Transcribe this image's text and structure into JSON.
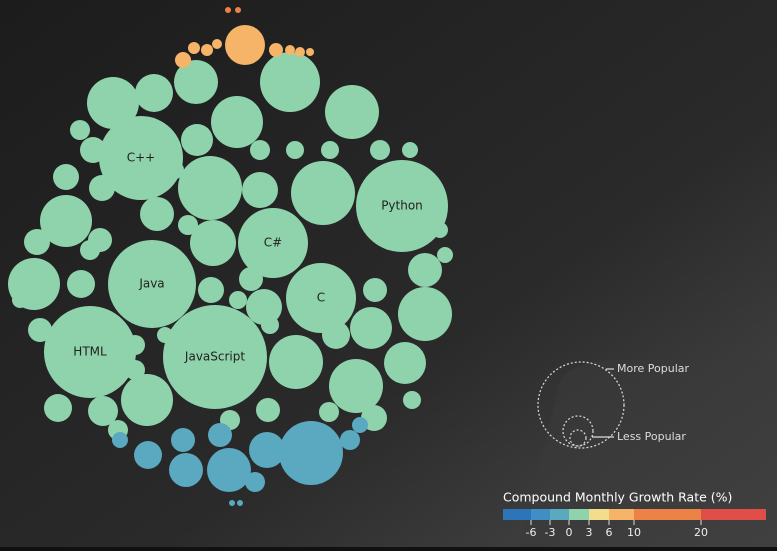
{
  "chart_data": {
    "type": "bubble",
    "names": [
      "C++",
      "Python",
      "C#",
      "Java",
      "C",
      "HTML",
      "JavaScript",
      null,
      null,
      null,
      null,
      null,
      null,
      null,
      null,
      null,
      null,
      null,
      null,
      null,
      null,
      null,
      null,
      null,
      null,
      null,
      null,
      null,
      null,
      null,
      null,
      null,
      null,
      null,
      null,
      null,
      null,
      null,
      null,
      null,
      null,
      null,
      null,
      null,
      null,
      null,
      null,
      null,
      null,
      null,
      null,
      null,
      null,
      null,
      null,
      null,
      null,
      null,
      null,
      null,
      null,
      null,
      null,
      null,
      null,
      null,
      null,
      null,
      null,
      null,
      null,
      null,
      null,
      null,
      null,
      null,
      null,
      null,
      null,
      null,
      null,
      null,
      null,
      null,
      null,
      null,
      null,
      null,
      null,
      null,
      null,
      null
    ],
    "sizes": [
      1764,
      2116,
      1225,
      1936,
      1225,
      2116,
      2704,
      676,
      361,
      484,
      900,
      676,
      729,
      256,
      169,
      169,
      169,
      1024,
      324,
      1024,
      289,
      676,
      169,
      676,
      196,
      529,
      169,
      324,
      144,
      144,
      289,
      729,
      441,
      196,
      729,
      441,
      729,
      169,
      676,
      225,
      196,
      144,
      144,
      100,
      100,
      64,
      100,
      81,
      81,
      100,
      64,
      81,
      64,
      64,
      81,
      100,
      100,
      144,
      100,
      100,
      100,
      64,
      100,
      81,
      81,
      100,
      81,
      64,
      400,
      64,
      36,
      36,
      25,
      49,
      25,
      25,
      16,
      9,
      9,
      1024,
      484,
      324,
      289,
      196,
      144,
      64,
      144,
      100,
      100,
      64,
      9,
      9
    ],
    "growth": [
      1,
      1,
      1,
      1,
      1,
      1,
      1,
      1,
      1,
      1,
      1,
      1,
      1,
      1,
      1,
      1,
      1,
      1,
      1,
      1,
      1,
      1,
      1,
      1,
      1,
      1,
      1,
      1,
      1,
      1,
      1,
      1,
      1,
      1,
      1,
      1,
      1,
      1,
      1,
      1,
      1,
      1,
      1,
      1,
      1,
      1,
      1,
      1,
      1,
      1,
      1,
      1,
      1,
      1,
      1,
      1,
      1,
      1,
      1,
      1,
      1,
      1,
      1,
      1,
      1,
      1,
      1,
      1,
      8,
      8,
      8,
      8,
      8,
      8,
      8,
      8,
      8,
      15,
      15,
      -2,
      -2,
      -2,
      -2,
      -2,
      -2,
      -2,
      -2,
      -2,
      -2,
      -2,
      -2,
      -2
    ],
    "colorbar": {
      "title": "Compound Monthly Growth Rate (%)",
      "ticks": [
        -6,
        -3,
        0,
        3,
        6,
        10,
        20
      ],
      "colors": [
        "#2e74b8",
        "#3f8fc5",
        "#5aa9c0",
        "#8fd3ac",
        "#f3dc8b",
        "#f5b468",
        "#ec8247",
        "#df4f48"
      ]
    },
    "size_legend": [
      "More Popular",
      "Less Popular"
    ]
  }
}
